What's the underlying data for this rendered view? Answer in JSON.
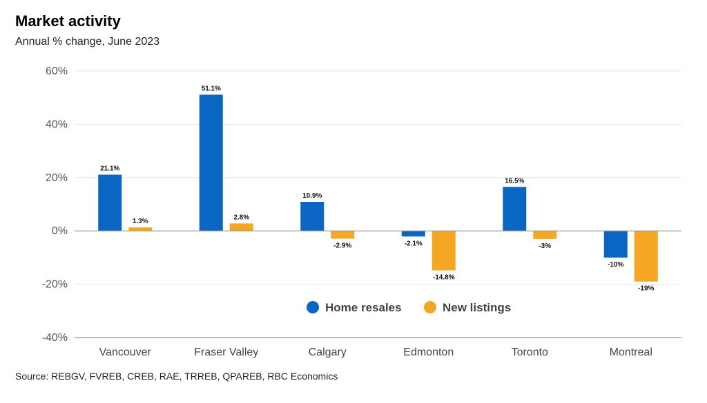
{
  "title": "Market activity",
  "subtitle": "Annual % change, June 2023",
  "source": "Source: REBGV, FVREB, CREB, RAE, TRREB, QPAREB, RBC Economics",
  "chart_data": {
    "type": "bar",
    "title": "Market activity",
    "subtitle": "Annual % change, June 2023",
    "categories": [
      "Vancouver",
      "Fraser Valley",
      "Calgary",
      "Edmonton",
      "Toronto",
      "Montreal"
    ],
    "series": [
      {
        "name": "Home resales",
        "color": "#0a66c2",
        "values": [
          21.1,
          51.1,
          10.9,
          -2.1,
          16.5,
          -10
        ],
        "labels": [
          "21.1%",
          "51.1%",
          "10.9%",
          "-2.1%",
          "16.5%",
          "-10%"
        ]
      },
      {
        "name": "New listings",
        "color": "#f5a623",
        "values": [
          1.3,
          2.8,
          -2.9,
          -14.8,
          -3,
          -19
        ],
        "labels": [
          "1.3%",
          "2.8%",
          "-2.9%",
          "-14.8%",
          "-3%",
          "-19%"
        ]
      }
    ],
    "ylim": [
      -40,
      60
    ],
    "yticks": [
      60,
      40,
      20,
      0,
      -20,
      -40
    ],
    "ytick_labels": [
      "60%",
      "40%",
      "20%",
      "0%",
      "-20%",
      "-40%"
    ],
    "grid": true,
    "legend_position": "bottom-center"
  }
}
